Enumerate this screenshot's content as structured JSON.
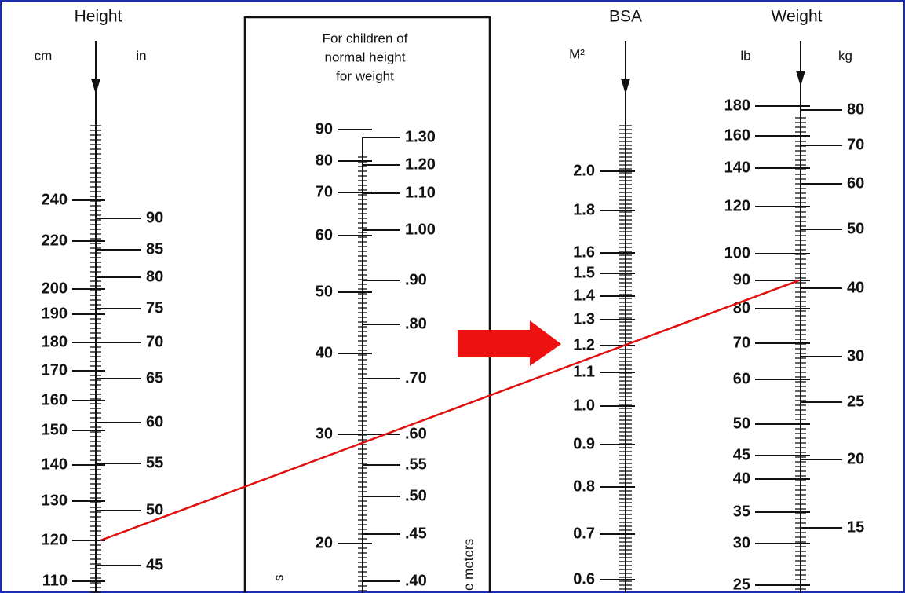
{
  "height": {
    "title": "Height",
    "units": [
      "cm",
      "in"
    ],
    "cm": [
      "240",
      "220",
      "200",
      "190",
      "180",
      "170",
      "160",
      "150",
      "140",
      "130",
      "120",
      "110"
    ],
    "in": [
      "90",
      "85",
      "80",
      "75",
      "70",
      "65",
      "60",
      "55",
      "50",
      "45"
    ]
  },
  "box": {
    "lines": [
      "For children of",
      "normal height",
      "for weight"
    ],
    "lb": [
      "90",
      "80",
      "70",
      "60",
      "50",
      "40",
      "30",
      "20"
    ],
    "m2": [
      "1.30",
      "1.20",
      "1.10",
      "1.00",
      ".90",
      ".80",
      ".70",
      ".60",
      ".55",
      ".50",
      ".45",
      ".40"
    ],
    "side_texts": [
      "s",
      "e meters"
    ]
  },
  "bsa": {
    "title": "BSA",
    "unit": "M²",
    "values": [
      "2.0",
      "1.8",
      "1.6",
      "1.5",
      "1.4",
      "1.3",
      "1.2",
      "1.1",
      "1.0",
      "0.9",
      "0.8",
      "0.7",
      "0.6"
    ]
  },
  "weight": {
    "title": "Weight",
    "units": [
      "lb",
      "kg"
    ],
    "lb": [
      "180",
      "160",
      "140",
      "120",
      "100",
      "90",
      "80",
      "70",
      "60",
      "50",
      "45",
      "40",
      "35",
      "30",
      "25"
    ],
    "kg": [
      "80",
      "70",
      "60",
      "50",
      "40",
      "30",
      "25",
      "20",
      "15"
    ]
  }
}
